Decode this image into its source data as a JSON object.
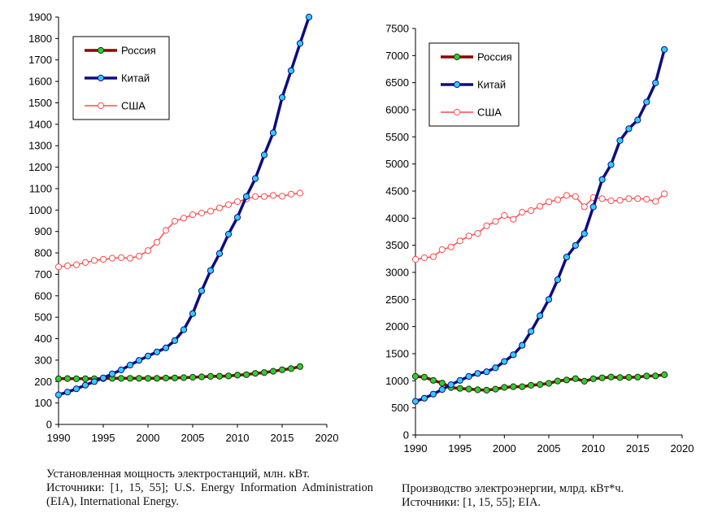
{
  "chart_data": [
    {
      "type": "line",
      "title": "",
      "xlabel": "",
      "ylabel": "",
      "xlim": [
        1990,
        2020
      ],
      "ylim": [
        0,
        1900
      ],
      "x_ticks": [
        1990,
        1995,
        2000,
        2005,
        2010,
        2015,
        2020
      ],
      "y_ticks": [
        0,
        100,
        200,
        300,
        400,
        500,
        600,
        700,
        800,
        900,
        1000,
        1100,
        1200,
        1300,
        1400,
        1500,
        1600,
        1700,
        1800,
        1900
      ],
      "legend_position": "top-left",
      "caption": [
        "Установленная мощность электростанций, млн. кВт.",
        "Источники: [1, 15, 55]; U.S. Energy Information Administration (EIA), International Energy."
      ],
      "series": [
        {
          "name": "Россия",
          "color": "#8b0000",
          "marker_color": "#33cc33",
          "x": [
            1990,
            1991,
            1992,
            1993,
            1994,
            1995,
            1996,
            1997,
            1998,
            1999,
            2000,
            2001,
            2002,
            2003,
            2004,
            2005,
            2006,
            2007,
            2008,
            2009,
            2010,
            2011,
            2012,
            2013,
            2014,
            2015,
            2016,
            2017
          ],
          "values": [
            213,
            214,
            213,
            213,
            213,
            214,
            215,
            215,
            215,
            215,
            215,
            215,
            216,
            217,
            218,
            220,
            222,
            224,
            225,
            226,
            230,
            232,
            238,
            242,
            248,
            255,
            260,
            270
          ]
        },
        {
          "name": "Китай",
          "color": "#0d0d80",
          "marker_color": "#33ccff",
          "x": [
            1990,
            1991,
            1992,
            1993,
            1994,
            1995,
            1996,
            1997,
            1998,
            1999,
            2000,
            2001,
            2002,
            2003,
            2004,
            2005,
            2006,
            2007,
            2008,
            2009,
            2010,
            2011,
            2012,
            2013,
            2014,
            2015,
            2016,
            2017,
            2018
          ],
          "values": [
            138,
            151,
            166,
            183,
            200,
            217,
            236,
            254,
            277,
            299,
            319,
            338,
            357,
            391,
            442,
            517,
            623,
            718,
            797,
            887,
            966,
            1063,
            1147,
            1257,
            1360,
            1525,
            1650,
            1777,
            1900
          ]
        },
        {
          "name": "США",
          "color": "#ff4d4d",
          "marker_color": "#ffffff",
          "x": [
            1990,
            1991,
            1992,
            1993,
            1994,
            1995,
            1996,
            1997,
            1998,
            1999,
            2000,
            2001,
            2002,
            2003,
            2004,
            2005,
            2006,
            2007,
            2008,
            2009,
            2010,
            2011,
            2012,
            2013,
            2014,
            2015,
            2016,
            2017
          ],
          "values": [
            735,
            740,
            745,
            755,
            765,
            770,
            775,
            778,
            775,
            785,
            811,
            850,
            905,
            948,
            962,
            978,
            986,
            995,
            1010,
            1025,
            1039,
            1051,
            1063,
            1063,
            1068,
            1064,
            1074,
            1079
          ]
        }
      ]
    },
    {
      "type": "line",
      "title": "",
      "xlabel": "",
      "ylabel": "",
      "xlim": [
        1990,
        2020
      ],
      "ylim": [
        0,
        7500
      ],
      "x_ticks": [
        1990,
        1995,
        2000,
        2005,
        2010,
        2015,
        2020
      ],
      "y_ticks": [
        0,
        500,
        1000,
        1500,
        2000,
        2500,
        3000,
        3500,
        4000,
        4500,
        5000,
        5500,
        6000,
        6500,
        7000,
        7500
      ],
      "legend_position": "top-left",
      "caption": [
        "Производство электроэнергии, млрд. кВт*ч.",
        "Источники: [1, 15, 55]; EIA."
      ],
      "series": [
        {
          "name": "Россия",
          "color": "#8b0000",
          "marker_color": "#33cc33",
          "x": [
            1990,
            1991,
            1992,
            1993,
            1994,
            1995,
            1996,
            1997,
            1998,
            1999,
            2000,
            2001,
            2002,
            2003,
            2004,
            2005,
            2006,
            2007,
            2008,
            2009,
            2010,
            2011,
            2012,
            2013,
            2014,
            2015,
            2016,
            2017,
            2018
          ],
          "values": [
            1082,
            1068,
            1008,
            957,
            876,
            860,
            847,
            834,
            827,
            846,
            878,
            891,
            891,
            916,
            931,
            953,
            996,
            1015,
            1040,
            992,
            1038,
            1055,
            1069,
            1059,
            1064,
            1068,
            1087,
            1091,
            1111
          ]
        },
        {
          "name": "Китай",
          "color": "#0d0d80",
          "marker_color": "#33ccff",
          "x": [
            1990,
            1991,
            1992,
            1993,
            1994,
            1995,
            1996,
            1997,
            1998,
            1999,
            2000,
            2001,
            2002,
            2003,
            2004,
            2005,
            2006,
            2007,
            2008,
            2009,
            2010,
            2011,
            2012,
            2013,
            2014,
            2015,
            2016,
            2017,
            2018
          ],
          "values": [
            621,
            678,
            754,
            839,
            928,
            1007,
            1080,
            1135,
            1167,
            1239,
            1356,
            1480,
            1654,
            1911,
            2200,
            2500,
            2865,
            3282,
            3496,
            3714,
            4208,
            4713,
            4988,
            5432,
            5650,
            5811,
            6142,
            6495,
            7112
          ]
        },
        {
          "name": "США",
          "color": "#ff4d4d",
          "marker_color": "#ffffff",
          "x": [
            1990,
            1991,
            1992,
            1993,
            1994,
            1995,
            1996,
            1997,
            1998,
            1999,
            2000,
            2001,
            2002,
            2003,
            2004,
            2005,
            2006,
            2007,
            2008,
            2009,
            2010,
            2011,
            2012,
            2013,
            2014,
            2015,
            2016,
            2017,
            2018
          ],
          "values": [
            3240,
            3270,
            3290,
            3420,
            3470,
            3580,
            3670,
            3720,
            3860,
            3940,
            4050,
            3980,
            4110,
            4140,
            4220,
            4300,
            4340,
            4420,
            4400,
            4210,
            4380,
            4360,
            4320,
            4330,
            4360,
            4360,
            4350,
            4310,
            4450
          ]
        }
      ]
    }
  ],
  "captions": {
    "left_line1": "Установленная мощность электростанций, млн. кВт.",
    "left_line2": "Источники: [1, 15, 55]; U.S. Energy Information Administration (EIA), International Energy.",
    "right_line1": "Производство электроэнергии, млрд. кВт*ч.",
    "right_line2": "Источники: [1, 15, 55]; EIA."
  }
}
